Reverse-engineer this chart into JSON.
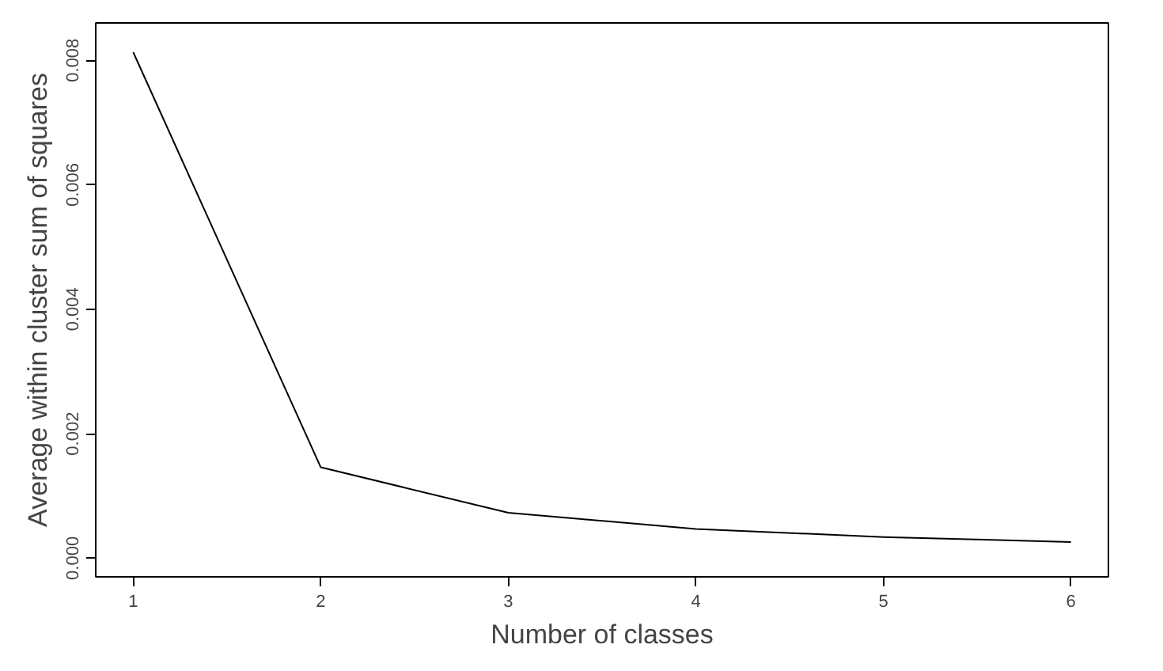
{
  "chart_data": {
    "type": "line",
    "xlabel": "Number of classes",
    "ylabel": "Average within cluster sum of squares",
    "x": [
      1,
      2,
      3,
      4,
      5,
      6
    ],
    "series": [
      {
        "color": "#000000",
        "values": [
          0.00813,
          0.00146,
          0.00073,
          0.00047,
          0.00034,
          0.00026
        ]
      }
    ],
    "xlim": [
      0.8,
      6.2
    ],
    "ylim": [
      -0.0003,
      0.0086
    ],
    "xticks": [
      1,
      2,
      3,
      4,
      5,
      6
    ],
    "yticks": [
      {
        "value": 0,
        "label": "0.000"
      },
      {
        "value": 0.002,
        "label": "0.002"
      },
      {
        "value": 0.004,
        "label": "0.004"
      },
      {
        "value": 0.006,
        "label": "0.006"
      },
      {
        "value": 0.008,
        "label": "0.008"
      }
    ],
    "grid": false,
    "marker": "none",
    "line_style": "solid"
  }
}
